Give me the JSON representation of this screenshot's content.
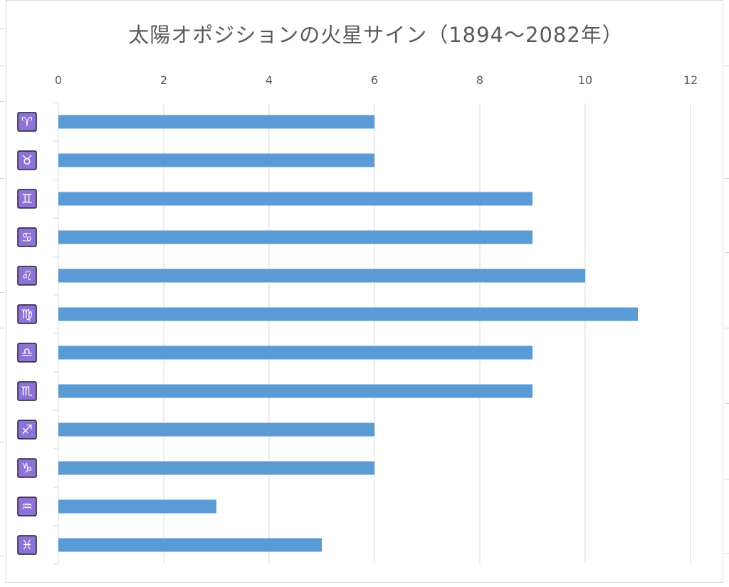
{
  "chart_data": {
    "type": "bar",
    "orientation": "horizontal",
    "title": "太陽オポジションの火星サイン（1894～2082年）",
    "categories": [
      "♈",
      "♉",
      "♊",
      "♋",
      "♌",
      "♍",
      "♎",
      "♏",
      "♐",
      "♑",
      "♒",
      "♓"
    ],
    "values": [
      6,
      6,
      9,
      9,
      10,
      11,
      9,
      9,
      6,
      6,
      3,
      5
    ],
    "xlim": [
      0,
      12
    ],
    "xticks": [
      0,
      2,
      4,
      6,
      8,
      10,
      12
    ],
    "x_axis_position": "top",
    "grid": true,
    "legend": "none",
    "bar_color": "#5b9bd5",
    "label_box_color": "#8e72d6",
    "gridline_color": "#d9d9d9"
  }
}
